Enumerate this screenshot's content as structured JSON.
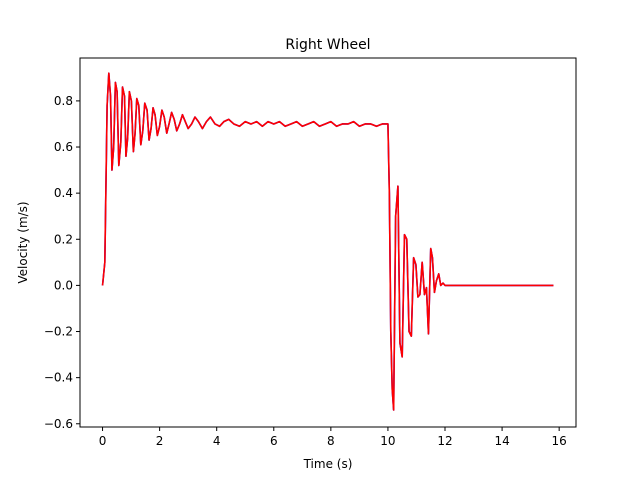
{
  "chart_data": {
    "type": "line",
    "title": "Right Wheel",
    "xlabel": "Time (s)",
    "ylabel": "Velocity (m/s)",
    "xlim": [
      -0.79,
      16.59
    ],
    "ylim": [
      -0.614,
      0.986
    ],
    "xticks": [
      0,
      2,
      4,
      6,
      8,
      10,
      12,
      14,
      16
    ],
    "xtick_labels": [
      "0",
      "2",
      "4",
      "6",
      "8",
      "10",
      "12",
      "14",
      "16"
    ],
    "yticks": [
      -0.6,
      -0.4,
      -0.2,
      0.0,
      0.2,
      0.4,
      0.6,
      0.8
    ],
    "ytick_labels": [
      "−0.6",
      "−0.4",
      "−0.2",
      "0.0",
      "0.2",
      "0.4",
      "0.6",
      "0.8"
    ],
    "grid": false,
    "legend": "none",
    "series": [
      {
        "color": "#0000ff",
        "x": [
          0.0,
          0.08,
          0.16,
          0.22,
          0.28,
          0.33,
          0.39,
          0.45,
          0.51,
          0.57,
          0.64,
          0.7,
          0.77,
          0.82,
          0.88,
          0.94,
          1.01,
          1.08,
          1.14,
          1.2,
          1.27,
          1.34,
          1.41,
          1.48,
          1.56,
          1.63,
          1.7,
          1.77,
          1.84,
          1.92,
          2.0,
          2.08,
          2.16,
          2.25,
          2.33,
          2.42,
          2.51,
          2.6,
          2.7,
          2.8,
          2.9,
          3.0,
          3.12,
          3.24,
          3.36,
          3.5,
          3.64,
          3.78,
          3.94,
          4.1,
          4.25,
          4.42,
          4.6,
          4.8,
          5.0,
          5.2,
          5.4,
          5.6,
          5.8,
          6.0,
          6.2,
          6.4,
          6.6,
          6.8,
          7.0,
          7.2,
          7.4,
          7.6,
          7.8,
          8.0,
          8.2,
          8.4,
          8.6,
          8.8,
          9.0,
          9.2,
          9.4,
          9.6,
          9.8,
          10.0,
          10.05,
          10.1,
          10.15,
          10.2,
          10.27,
          10.35,
          10.42,
          10.5,
          10.58,
          10.66,
          10.74,
          10.82,
          10.9,
          10.98,
          11.05,
          11.12,
          11.2,
          11.28,
          11.35,
          11.42,
          11.5,
          11.56,
          11.63,
          11.7,
          11.78,
          11.85,
          11.93,
          12.0,
          12.1,
          12.5,
          13.0,
          14.0,
          15.0,
          15.8
        ],
        "y": [
          0.0,
          0.1,
          0.78,
          0.92,
          0.82,
          0.5,
          0.6,
          0.88,
          0.84,
          0.52,
          0.62,
          0.86,
          0.82,
          0.56,
          0.64,
          0.84,
          0.8,
          0.58,
          0.66,
          0.81,
          0.78,
          0.61,
          0.67,
          0.79,
          0.76,
          0.63,
          0.68,
          0.77,
          0.74,
          0.65,
          0.69,
          0.76,
          0.73,
          0.66,
          0.7,
          0.75,
          0.72,
          0.67,
          0.7,
          0.74,
          0.71,
          0.68,
          0.7,
          0.73,
          0.71,
          0.68,
          0.71,
          0.73,
          0.7,
          0.69,
          0.71,
          0.72,
          0.7,
          0.69,
          0.71,
          0.7,
          0.71,
          0.69,
          0.71,
          0.7,
          0.71,
          0.69,
          0.7,
          0.71,
          0.69,
          0.7,
          0.71,
          0.69,
          0.7,
          0.71,
          0.69,
          0.7,
          0.7,
          0.71,
          0.69,
          0.7,
          0.7,
          0.69,
          0.7,
          0.7,
          0.4,
          -0.2,
          -0.45,
          -0.54,
          0.3,
          0.43,
          -0.25,
          -0.31,
          0.22,
          0.2,
          -0.2,
          -0.22,
          0.12,
          0.09,
          -0.05,
          -0.04,
          0.1,
          -0.04,
          -0.01,
          -0.21,
          0.16,
          0.12,
          -0.03,
          0.02,
          0.05,
          0.0,
          0.01,
          0.0,
          0.0,
          0.0,
          0.0,
          0.0,
          0.0,
          0.0
        ]
      },
      {
        "color": "#ff0000",
        "x": [
          0.0,
          0.08,
          0.16,
          0.22,
          0.28,
          0.33,
          0.39,
          0.45,
          0.51,
          0.57,
          0.64,
          0.7,
          0.77,
          0.82,
          0.88,
          0.94,
          1.01,
          1.08,
          1.14,
          1.2,
          1.27,
          1.34,
          1.41,
          1.48,
          1.56,
          1.63,
          1.7,
          1.77,
          1.84,
          1.92,
          2.0,
          2.08,
          2.16,
          2.25,
          2.33,
          2.42,
          2.51,
          2.6,
          2.7,
          2.8,
          2.9,
          3.0,
          3.12,
          3.24,
          3.36,
          3.5,
          3.64,
          3.78,
          3.94,
          4.1,
          4.25,
          4.42,
          4.6,
          4.8,
          5.0,
          5.2,
          5.4,
          5.6,
          5.8,
          6.0,
          6.2,
          6.4,
          6.6,
          6.8,
          7.0,
          7.2,
          7.4,
          7.6,
          7.8,
          8.0,
          8.2,
          8.4,
          8.6,
          8.8,
          9.0,
          9.2,
          9.4,
          9.6,
          9.8,
          10.0,
          10.05,
          10.1,
          10.15,
          10.2,
          10.27,
          10.35,
          10.42,
          10.5,
          10.58,
          10.66,
          10.74,
          10.82,
          10.9,
          10.98,
          11.05,
          11.12,
          11.2,
          11.28,
          11.35,
          11.42,
          11.5,
          11.56,
          11.63,
          11.7,
          11.78,
          11.85,
          11.93,
          12.0,
          12.1,
          12.5,
          13.0,
          14.0,
          15.0,
          15.8
        ],
        "y": [
          0.0,
          0.1,
          0.78,
          0.92,
          0.82,
          0.5,
          0.6,
          0.88,
          0.84,
          0.52,
          0.62,
          0.86,
          0.82,
          0.56,
          0.64,
          0.84,
          0.8,
          0.58,
          0.66,
          0.81,
          0.78,
          0.61,
          0.67,
          0.79,
          0.76,
          0.63,
          0.68,
          0.77,
          0.74,
          0.65,
          0.69,
          0.76,
          0.73,
          0.66,
          0.7,
          0.75,
          0.72,
          0.67,
          0.7,
          0.74,
          0.71,
          0.68,
          0.7,
          0.73,
          0.71,
          0.68,
          0.71,
          0.73,
          0.7,
          0.69,
          0.71,
          0.72,
          0.7,
          0.69,
          0.71,
          0.7,
          0.71,
          0.69,
          0.71,
          0.7,
          0.71,
          0.69,
          0.7,
          0.71,
          0.69,
          0.7,
          0.71,
          0.69,
          0.7,
          0.71,
          0.69,
          0.7,
          0.7,
          0.71,
          0.69,
          0.7,
          0.7,
          0.69,
          0.7,
          0.7,
          0.4,
          -0.2,
          -0.45,
          -0.54,
          0.3,
          0.43,
          -0.25,
          -0.31,
          0.22,
          0.2,
          -0.2,
          -0.22,
          0.12,
          0.09,
          -0.05,
          -0.04,
          0.1,
          -0.04,
          -0.01,
          -0.21,
          0.16,
          0.12,
          -0.03,
          0.02,
          0.05,
          0.0,
          0.01,
          0.0,
          0.0,
          0.0,
          0.0,
          0.0,
          0.0,
          0.0
        ]
      }
    ]
  }
}
